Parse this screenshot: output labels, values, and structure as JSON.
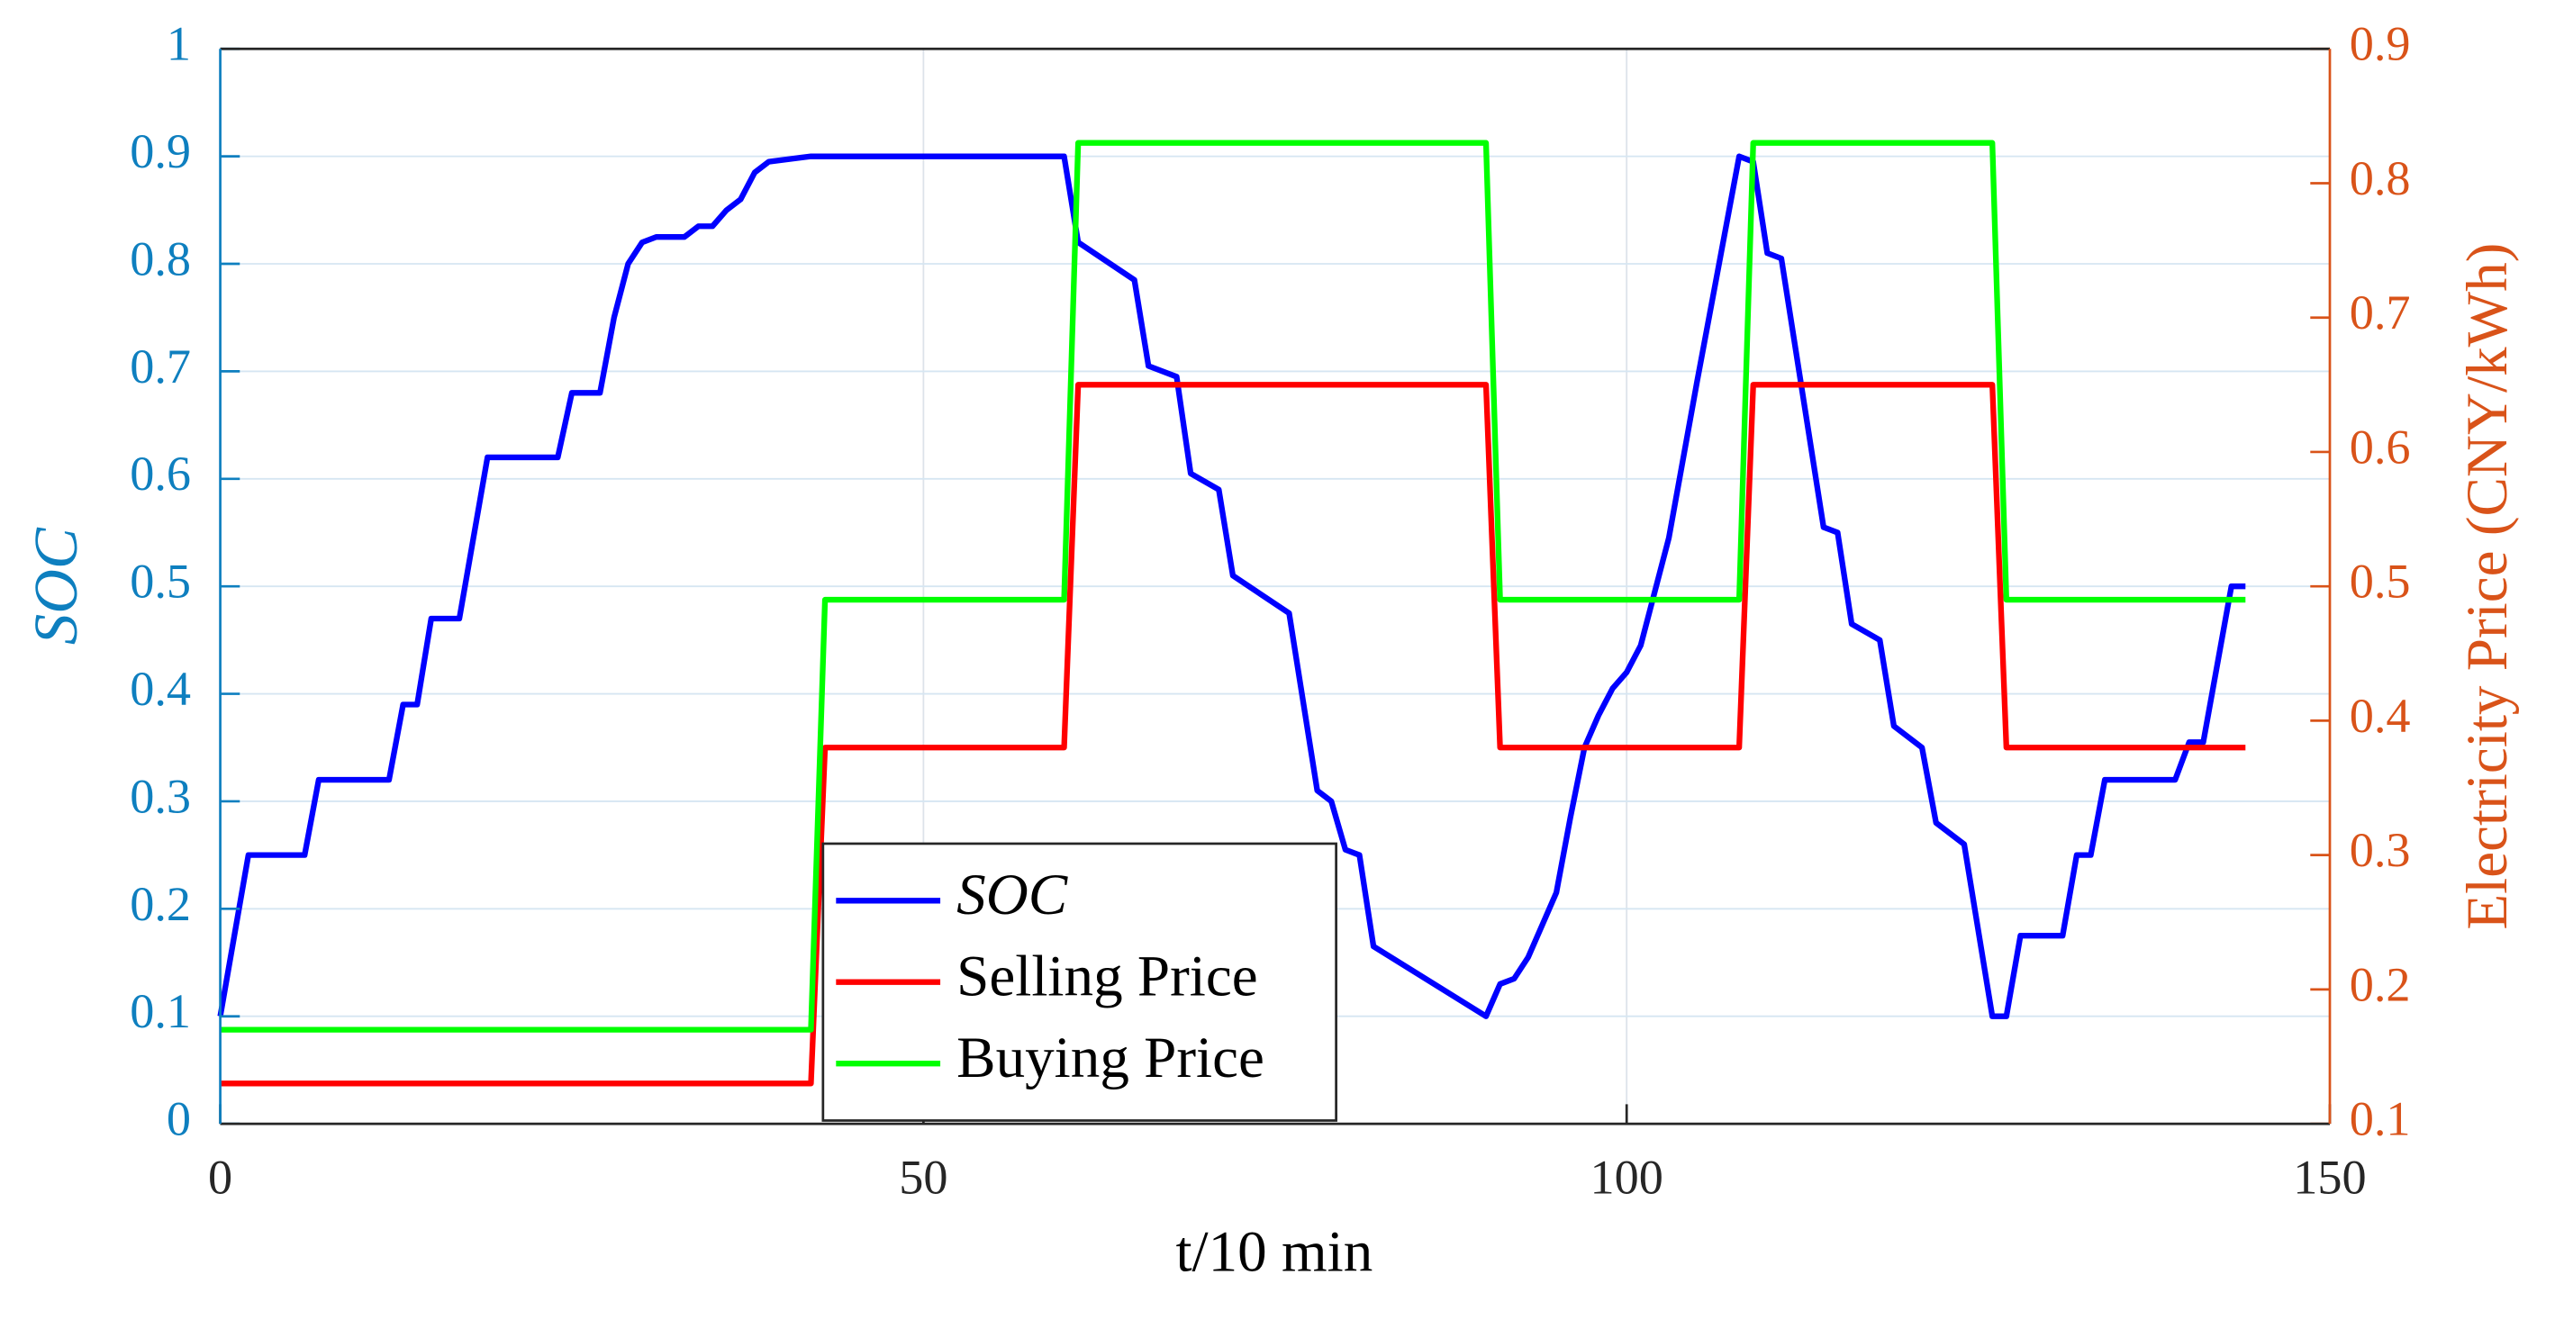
{
  "chart_data": {
    "type": "line",
    "xlabel": "t/10 min",
    "ylabel": "SOC",
    "y2label": "Electricity Price (CNY/kWh)",
    "xlim": [
      0,
      150
    ],
    "xticks": [
      0,
      50,
      100,
      150
    ],
    "ylim": [
      0,
      1
    ],
    "yticks": [
      0,
      0.1,
      0.2,
      0.3,
      0.4,
      0.5,
      0.6,
      0.7,
      0.8,
      0.9,
      1
    ],
    "y2lim": [
      0.1,
      0.9
    ],
    "y2ticks": [
      0.1,
      0.2,
      0.3,
      0.4,
      0.5,
      0.6,
      0.7,
      0.8,
      0.9
    ],
    "ycolor": "#0e7fbf",
    "y2color": "#d95319",
    "grid": true,
    "legend_loc": "lower center",
    "series": [
      {
        "name": "SOC",
        "color": "#0000ff",
        "x": [
          0,
          2,
          6,
          7,
          12,
          13,
          14,
          15,
          17,
          19,
          24,
          25,
          27,
          28,
          29,
          30,
          31,
          33,
          34,
          35,
          36,
          37,
          38,
          39,
          42,
          60,
          61,
          65,
          66,
          68,
          69,
          71,
          72,
          76,
          78,
          79,
          80,
          81,
          82,
          90,
          91,
          92,
          93,
          94,
          95,
          96,
          97,
          98,
          99,
          100,
          101,
          103,
          105,
          107,
          108,
          109,
          110,
          111,
          114,
          115,
          116,
          118,
          119,
          121,
          122,
          124,
          126,
          127,
          128,
          131,
          132,
          133,
          134,
          139,
          140,
          141,
          143,
          144
        ],
        "values": [
          0.1,
          0.25,
          0.25,
          0.32,
          0.32,
          0.39,
          0.39,
          0.47,
          0.47,
          0.62,
          0.62,
          0.68,
          0.68,
          0.75,
          0.8,
          0.82,
          0.825,
          0.825,
          0.835,
          0.835,
          0.85,
          0.86,
          0.885,
          0.895,
          0.9,
          0.9,
          0.82,
          0.785,
          0.705,
          0.695,
          0.605,
          0.59,
          0.51,
          0.475,
          0.31,
          0.3,
          0.255,
          0.25,
          0.165,
          0.1,
          0.13,
          0.135,
          0.155,
          0.185,
          0.215,
          0.285,
          0.35,
          0.38,
          0.405,
          0.42,
          0.445,
          0.545,
          0.69,
          0.83,
          0.9,
          0.895,
          0.81,
          0.805,
          0.555,
          0.55,
          0.465,
          0.45,
          0.37,
          0.35,
          0.28,
          0.26,
          0.1,
          0.1,
          0.175,
          0.175,
          0.25,
          0.25,
          0.32,
          0.32,
          0.355,
          0.355,
          0.5,
          0.5
        ]
      },
      {
        "name": "Selling Price",
        "color": "#ff0000",
        "axis": "y2",
        "x": [
          0,
          42,
          43,
          60,
          61,
          90,
          91,
          108,
          109,
          126,
          127,
          144
        ],
        "values": [
          0.13,
          0.13,
          0.38,
          0.38,
          0.65,
          0.65,
          0.38,
          0.38,
          0.65,
          0.65,
          0.38,
          0.38
        ]
      },
      {
        "name": "Buying Price",
        "color": "#00ff00",
        "axis": "y2",
        "x": [
          0,
          42,
          43,
          60,
          61,
          90,
          91,
          108,
          109,
          126,
          127,
          144
        ],
        "values": [
          0.17,
          0.17,
          0.49,
          0.49,
          0.83,
          0.83,
          0.49,
          0.49,
          0.83,
          0.83,
          0.49,
          0.49
        ]
      }
    ]
  }
}
